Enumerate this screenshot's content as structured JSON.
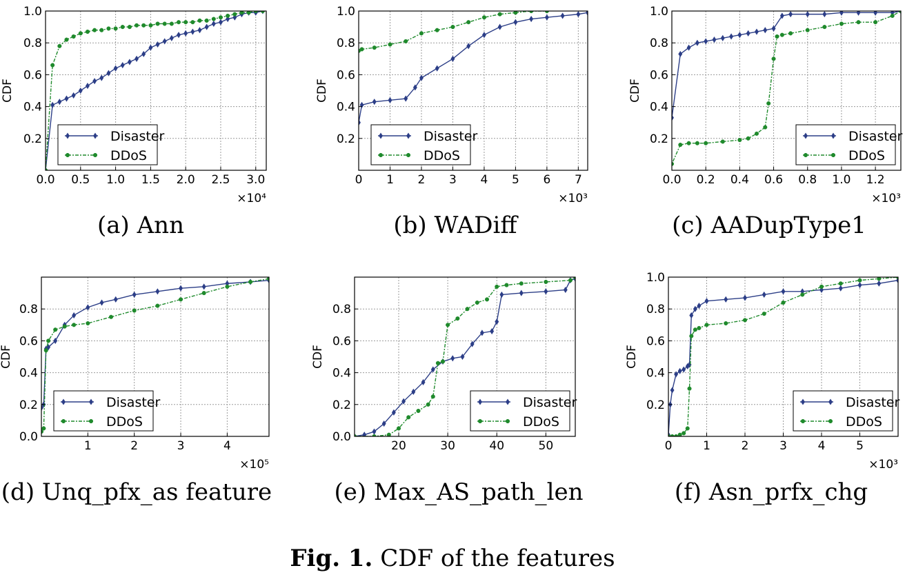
{
  "figure_caption": {
    "label": "Fig. 1.",
    "text": "CDF of the features"
  },
  "colors": {
    "disaster": "#2c3e87",
    "ddos": "#1f8a2c",
    "grid": "#9a9a9a"
  },
  "chart_data": [
    {
      "type": "line",
      "caption": "(a) Ann",
      "ylabel": "CDF",
      "xlim": [
        0,
        31500
      ],
      "ylim": [
        0,
        1.0
      ],
      "xticks": [
        0,
        5000,
        10000,
        15000,
        20000,
        25000,
        30000
      ],
      "xticklabels": [
        "0.0",
        "0.5",
        "1.0",
        "1.5",
        "2.0",
        "2.5",
        "3.0"
      ],
      "yticks": [
        0.2,
        0.4,
        0.6,
        0.8,
        1.0
      ],
      "yticklabels": [
        "0.2",
        "0.4",
        "0.6",
        "0.8",
        "1.0"
      ],
      "multiplier": "×10⁴",
      "legend": "lower-left",
      "series": [
        {
          "name": "Disaster",
          "x": [
            0,
            1000,
            2000,
            3000,
            4000,
            5000,
            6000,
            7000,
            8000,
            9000,
            10000,
            11000,
            12000,
            13000,
            14000,
            15000,
            16000,
            17000,
            18000,
            19000,
            20000,
            21000,
            22000,
            23000,
            24000,
            25000,
            26000,
            27000,
            28000,
            29000,
            30000,
            31000
          ],
          "y": [
            0,
            0.41,
            0.43,
            0.45,
            0.47,
            0.5,
            0.53,
            0.56,
            0.58,
            0.61,
            0.64,
            0.66,
            0.68,
            0.7,
            0.73,
            0.77,
            0.79,
            0.81,
            0.83,
            0.85,
            0.86,
            0.87,
            0.88,
            0.9,
            0.92,
            0.93,
            0.95,
            0.96,
            0.98,
            0.99,
            0.99,
            1.0
          ]
        },
        {
          "name": "DDoS",
          "x": [
            0,
            1000,
            2000,
            3000,
            4000,
            5000,
            6000,
            7000,
            8000,
            9000,
            10000,
            11000,
            12000,
            13000,
            14000,
            15000,
            16000,
            17000,
            18000,
            19000,
            20000,
            21000,
            22000,
            23000,
            24000,
            25000,
            26000,
            27000,
            28000,
            29000,
            30000,
            31000
          ],
          "y": [
            0,
            0.66,
            0.78,
            0.82,
            0.84,
            0.86,
            0.87,
            0.88,
            0.88,
            0.89,
            0.89,
            0.9,
            0.9,
            0.91,
            0.91,
            0.91,
            0.92,
            0.92,
            0.92,
            0.93,
            0.93,
            0.93,
            0.94,
            0.94,
            0.95,
            0.96,
            0.97,
            0.98,
            0.99,
            0.99,
            1.0,
            1.0
          ]
        }
      ]
    },
    {
      "type": "line",
      "caption": "(b) WADiff",
      "ylabel": "CDF",
      "xlim": [
        0,
        7300
      ],
      "ylim": [
        0,
        1.0
      ],
      "xticks": [
        0,
        1000,
        2000,
        3000,
        4000,
        5000,
        6000,
        7000
      ],
      "xticklabels": [
        "0",
        "1",
        "2",
        "3",
        "4",
        "5",
        "6",
        "7"
      ],
      "yticks": [
        0.2,
        0.4,
        0.6,
        0.8,
        1.0
      ],
      "yticklabels": [
        "0.2",
        "0.4",
        "0.6",
        "0.8",
        "1.0"
      ],
      "multiplier": "×10³",
      "legend": "lower-left",
      "series": [
        {
          "name": "Disaster",
          "x": [
            0,
            100,
            500,
            1000,
            1500,
            1800,
            2000,
            2500,
            3000,
            3500,
            4000,
            4500,
            5000,
            5500,
            6000,
            6500,
            7000,
            7300
          ],
          "y": [
            0.3,
            0.41,
            0.43,
            0.44,
            0.45,
            0.52,
            0.58,
            0.64,
            0.7,
            0.78,
            0.85,
            0.9,
            0.93,
            0.95,
            0.96,
            0.97,
            0.98,
            0.99
          ]
        },
        {
          "name": "DDoS",
          "x": [
            0,
            100,
            500,
            1000,
            1500,
            2000,
            2500,
            3000,
            3500,
            4000,
            4500,
            5000,
            5500,
            6000
          ],
          "y": [
            0.75,
            0.76,
            0.77,
            0.79,
            0.81,
            0.86,
            0.88,
            0.9,
            0.93,
            0.96,
            0.98,
            0.99,
            1.0,
            1.0
          ]
        }
      ]
    },
    {
      "type": "line",
      "caption": "(c) AADupType1",
      "ylabel": "CDF",
      "xlim": [
        0,
        1350
      ],
      "ylim": [
        0,
        1.0
      ],
      "xticks": [
        0,
        200,
        400,
        600,
        800,
        1000,
        1200
      ],
      "xticklabels": [
        "0.0",
        "0.2",
        "0.4",
        "0.6",
        "0.8",
        "1.0",
        "1.2"
      ],
      "yticks": [
        0.2,
        0.4,
        0.6,
        0.8,
        1.0
      ],
      "yticklabels": [
        "0.2",
        "0.4",
        "0.6",
        "0.8",
        "1.0"
      ],
      "multiplier": "×10³",
      "legend": "lower-right",
      "series": [
        {
          "name": "Disaster",
          "x": [
            0,
            50,
            100,
            150,
            200,
            250,
            300,
            350,
            400,
            450,
            500,
            550,
            600,
            650,
            700,
            800,
            900,
            1000,
            1100,
            1200,
            1300,
            1350
          ],
          "y": [
            0.33,
            0.73,
            0.77,
            0.8,
            0.81,
            0.82,
            0.83,
            0.84,
            0.85,
            0.86,
            0.87,
            0.88,
            0.89,
            0.97,
            0.98,
            0.98,
            0.98,
            0.99,
            0.99,
            0.99,
            0.99,
            1.0
          ]
        },
        {
          "name": "DDoS",
          "x": [
            0,
            50,
            100,
            150,
            200,
            300,
            400,
            450,
            500,
            550,
            570,
            600,
            620,
            650,
            700,
            800,
            900,
            1000,
            1100,
            1200,
            1300,
            1350
          ],
          "y": [
            0.04,
            0.16,
            0.17,
            0.17,
            0.17,
            0.18,
            0.19,
            0.2,
            0.23,
            0.27,
            0.42,
            0.7,
            0.84,
            0.85,
            0.86,
            0.88,
            0.9,
            0.92,
            0.93,
            0.93,
            0.97,
            1.0
          ]
        }
      ]
    },
    {
      "type": "line",
      "caption": "(d) Unq_pfx_as feature",
      "ylabel": "CDF",
      "xlim": [
        0,
        490000
      ],
      "ylim": [
        0,
        1.0
      ],
      "xticks": [
        100000,
        200000,
        300000,
        400000
      ],
      "xticklabels": [
        "1",
        "2",
        "3",
        "4"
      ],
      "yticks": [
        0.0,
        0.2,
        0.4,
        0.6,
        0.8
      ],
      "yticklabels": [
        "0.0",
        "0.2",
        "0.4",
        "0.6",
        "0.8"
      ],
      "multiplier": "×10⁵",
      "legend": "lower-left",
      "series": [
        {
          "name": "Disaster",
          "x": [
            0,
            5000,
            10000,
            15000,
            30000,
            50000,
            70000,
            100000,
            130000,
            160000,
            200000,
            250000,
            300000,
            350000,
            400000,
            450000,
            490000
          ],
          "y": [
            0.18,
            0.2,
            0.55,
            0.56,
            0.6,
            0.7,
            0.76,
            0.81,
            0.84,
            0.86,
            0.89,
            0.91,
            0.93,
            0.94,
            0.96,
            0.97,
            0.98
          ]
        },
        {
          "name": "DDoS",
          "x": [
            0,
            5000,
            10000,
            15000,
            30000,
            50000,
            70000,
            100000,
            150000,
            200000,
            250000,
            300000,
            350000,
            400000,
            450000,
            490000
          ],
          "y": [
            0.03,
            0.05,
            0.54,
            0.6,
            0.67,
            0.69,
            0.7,
            0.71,
            0.75,
            0.79,
            0.82,
            0.86,
            0.9,
            0.94,
            0.97,
            0.99
          ]
        }
      ]
    },
    {
      "type": "line",
      "caption": "(e) Max_AS_path_len",
      "ylabel": "CDF",
      "xlim": [
        11,
        56
      ],
      "ylim": [
        0,
        1.0
      ],
      "xticks": [
        20,
        30,
        40,
        50
      ],
      "xticklabels": [
        "20",
        "30",
        "40",
        "50"
      ],
      "yticks": [
        0.0,
        0.2,
        0.4,
        0.6,
        0.8
      ],
      "yticklabels": [
        "0.0",
        "0.2",
        "0.4",
        "0.6",
        "0.8"
      ],
      "legend": "lower-right",
      "series": [
        {
          "name": "Disaster",
          "x": [
            11,
            13,
            15,
            17,
            19,
            21,
            23,
            25,
            27,
            29,
            31,
            33,
            35,
            37,
            39,
            40,
            41,
            45,
            50,
            54,
            55,
            56
          ],
          "y": [
            0,
            0.01,
            0.03,
            0.08,
            0.15,
            0.22,
            0.28,
            0.34,
            0.42,
            0.47,
            0.49,
            0.5,
            0.58,
            0.65,
            0.66,
            0.72,
            0.89,
            0.9,
            0.91,
            0.92,
            0.98,
            0.99
          ]
        },
        {
          "name": "DDoS",
          "x": [
            11,
            15,
            18,
            20,
            22,
            24,
            26,
            27,
            28,
            29,
            30,
            32,
            34,
            36,
            38,
            40,
            42,
            45,
            50,
            55,
            56
          ],
          "y": [
            0,
            0,
            0.01,
            0.05,
            0.12,
            0.16,
            0.2,
            0.25,
            0.46,
            0.47,
            0.7,
            0.74,
            0.8,
            0.84,
            0.86,
            0.94,
            0.95,
            0.96,
            0.97,
            0.98,
            1.0
          ]
        }
      ]
    },
    {
      "type": "line",
      "caption": "(f) Asn_prfx_chg",
      "ylabel": "CDF",
      "xlim": [
        0,
        6000
      ],
      "ylim": [
        0,
        1.0
      ],
      "xticks": [
        0,
        1000,
        2000,
        3000,
        4000,
        5000
      ],
      "xticklabels": [
        "0",
        "1",
        "2",
        "3",
        "4",
        "5"
      ],
      "yticks": [
        0.2,
        0.4,
        0.6,
        0.8,
        1.0
      ],
      "yticklabels": [
        "0.2",
        "0.4",
        "0.6",
        "0.8",
        "1.0"
      ],
      "multiplier": "×10³",
      "legend": "lower-right",
      "series": [
        {
          "name": "Disaster",
          "x": [
            0,
            50,
            100,
            200,
            300,
            400,
            500,
            550,
            600,
            700,
            800,
            1000,
            1500,
            2000,
            2500,
            3000,
            3500,
            4000,
            4500,
            5000,
            5500,
            6000
          ],
          "y": [
            0.01,
            0.2,
            0.29,
            0.39,
            0.41,
            0.42,
            0.44,
            0.45,
            0.76,
            0.8,
            0.82,
            0.85,
            0.86,
            0.87,
            0.89,
            0.91,
            0.91,
            0.92,
            0.93,
            0.95,
            0.96,
            0.98
          ]
        },
        {
          "name": "DDoS",
          "x": [
            0,
            100,
            200,
            300,
            400,
            500,
            550,
            600,
            700,
            800,
            1000,
            1500,
            2000,
            2500,
            3000,
            3500,
            4000,
            4500,
            5000,
            5500,
            6000
          ],
          "y": [
            0,
            0,
            0,
            0.01,
            0.02,
            0.05,
            0.3,
            0.63,
            0.67,
            0.68,
            0.7,
            0.71,
            0.73,
            0.77,
            0.84,
            0.89,
            0.94,
            0.96,
            0.98,
            0.99,
            1.0
          ]
        }
      ]
    }
  ]
}
